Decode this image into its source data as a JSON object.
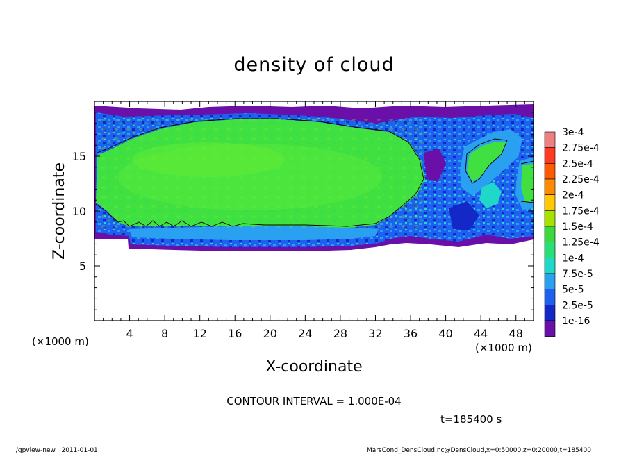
{
  "chart_data": {
    "type": "heatmap",
    "title": "density of cloud",
    "xlabel": "X-coordinate",
    "ylabel": "Z-coordinate",
    "x_unit": "(×1000 m)",
    "y_unit": "(×1000 m)",
    "xlim": [
      0,
      50
    ],
    "ylim": [
      0,
      20
    ],
    "x_ticks": [
      4,
      8,
      12,
      16,
      20,
      24,
      28,
      32,
      36,
      40,
      44,
      48
    ],
    "y_ticks": [
      5,
      10,
      15
    ],
    "contour_interval_text": "CONTOUR INTERVAL = 1.000E-04",
    "time_text": "t=185400 s",
    "colorbar": {
      "labels": [
        "3e-4",
        "2.75e-4",
        "2.5e-4",
        "2.25e-4",
        "2e-4",
        "1.75e-4",
        "1.5e-4",
        "1.25e-4",
        "1e-4",
        "7.5e-5",
        "5e-5",
        "2.5e-5",
        "1e-16"
      ],
      "colors": [
        "#f08080",
        "#ff3a20",
        "#ff5a00",
        "#ff8c00",
        "#ffc800",
        "#a8e000",
        "#3cd83c",
        "#28e07a",
        "#20d8c8",
        "#2aa0f0",
        "#1e60f0",
        "#1428c8",
        "#6a10a8"
      ]
    }
  },
  "footer": {
    "left": "./gpview-new   2011-01-01",
    "right": "MarsCond_DensCloud.nc@DensCloud,x=0:50000,z=0:20000,t=185400"
  }
}
